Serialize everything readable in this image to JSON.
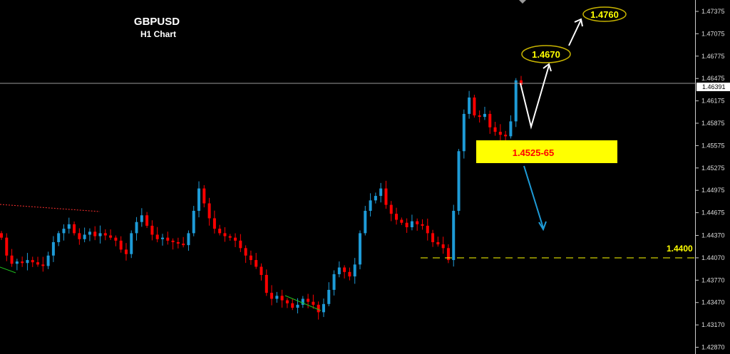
{
  "chart_data": {
    "type": "candlestick",
    "title": "GBPUSD",
    "subtitle": "H1 Chart",
    "ylim": [
      1.4272,
      1.4752
    ],
    "y_ticks": [
      "1.47375",
      "1.47075",
      "1.46775",
      "1.46475",
      "1.46175",
      "1.45875",
      "1.45575",
      "1.45275",
      "1.44975",
      "1.44675",
      "1.44370",
      "1.44070",
      "1.43770",
      "1.43470",
      "1.43170",
      "1.42870"
    ],
    "current_price": "1.46391",
    "closes": [
      1.4434,
      1.441,
      1.4399,
      1.4402,
      1.44,
      1.4404,
      1.4401,
      1.4398,
      1.4396,
      1.441,
      1.4428,
      1.444,
      1.4446,
      1.4452,
      1.444,
      1.4432,
      1.4438,
      1.4442,
      1.4436,
      1.444,
      1.4437,
      1.4434,
      1.443,
      1.4418,
      1.4412,
      1.444,
      1.4455,
      1.4464,
      1.445,
      1.4438,
      1.4432,
      1.4434,
      1.443,
      1.4428,
      1.4426,
      1.4424,
      1.444,
      1.447,
      1.45,
      1.448,
      1.446,
      1.4446,
      1.444,
      1.4436,
      1.4434,
      1.443,
      1.442,
      1.441,
      1.4404,
      1.4395,
      1.4384,
      1.436,
      1.4352,
      1.4356,
      1.435,
      1.4346,
      1.434,
      1.4344,
      1.4352,
      1.4348,
      1.4344,
      1.4334,
      1.4345,
      1.4364,
      1.4385,
      1.4394,
      1.4388,
      1.4382,
      1.4398,
      1.444,
      1.447,
      1.4484,
      1.449,
      1.45,
      1.4478,
      1.4466,
      1.4458,
      1.4454,
      1.4448,
      1.4456,
      1.4452,
      1.445,
      1.444,
      1.4428,
      1.4425,
      1.442,
      1.4404,
      1.447,
      1.455,
      1.46,
      1.4622,
      1.4598,
      1.4596,
      1.46,
      1.4582,
      1.4576,
      1.4572,
      1.457,
      1.459,
      1.4645,
      1.4639
    ],
    "annotations": {
      "target_1": "1.4670",
      "target_2": "1.4760",
      "zone": "1.4525-65",
      "support": "1.4400",
      "support_price": 1.44,
      "zone_range": [
        1.4525,
        1.4565
      ]
    },
    "grid": false,
    "colors": {
      "background": "#000000",
      "up": "#1e9bd7",
      "down": "#ff0000",
      "annotation": "#ffff00",
      "zone_text": "#ff0000",
      "arrow_up": "#ffffff",
      "arrow_down": "#1e9bd7"
    }
  }
}
